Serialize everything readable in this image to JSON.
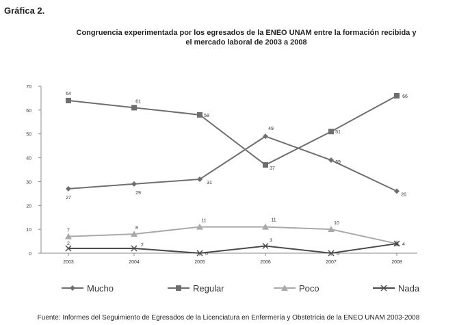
{
  "heading": "Gráfica 2.",
  "source": "Fuente: Informes del Seguimiento de Egresados de la Licenciatura en Enfermería y Obstetricia de la ENEO UNAM 2003-2008",
  "chart_data": {
    "type": "line",
    "title_lines": [
      "Congruencia experimentada por los egresados de la ENEO  UNAM entre la formación recibida y",
      "el mercado laboral de 2003 a 2008"
    ],
    "x": [
      "2003",
      "2004",
      "2005",
      "2006",
      "2007",
      "2008"
    ],
    "ylim": [
      0,
      70
    ],
    "yticks": [
      0,
      10,
      20,
      30,
      40,
      50,
      60,
      70
    ],
    "grid": false,
    "legend": "bottom",
    "series": [
      {
        "name": "Mucho",
        "marker": "diamond",
        "color": "#6e6e6e",
        "values": [
          27,
          29,
          31,
          49,
          39,
          26
        ]
      },
      {
        "name": "Regular",
        "marker": "square",
        "color": "#6e6e6e",
        "values": [
          64,
          61,
          58,
          37,
          51,
          66
        ]
      },
      {
        "name": "Poco",
        "marker": "triangle",
        "color": "#a9a9a9",
        "values": [
          7,
          8,
          11,
          11,
          10,
          4
        ]
      },
      {
        "name": "Nada",
        "marker": "x",
        "color": "#4a4a4a",
        "values": [
          2,
          2,
          0,
          3,
          0,
          4
        ]
      }
    ]
  }
}
